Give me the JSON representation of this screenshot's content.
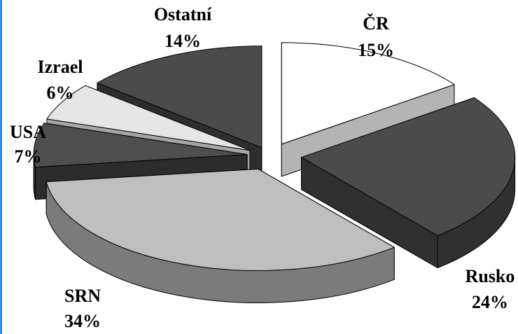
{
  "chart_data": {
    "type": "pie",
    "title": "",
    "exploded": true,
    "three_d": true,
    "slices": [
      {
        "label": "ČR",
        "pct_label": "15%",
        "value": 15,
        "top_color": "#ffffff",
        "side_color": "#b4b4b4"
      },
      {
        "label": "Rusko",
        "pct_label": "24%",
        "value": 24,
        "top_color": "#4b4b4b",
        "side_color": "#303030"
      },
      {
        "label": "SRN",
        "pct_label": "34%",
        "value": 34,
        "top_color": "#bfbfbf",
        "side_color": "#7b7b7b"
      },
      {
        "label": "USA",
        "pct_label": "7%",
        "value": 7,
        "top_color": "#4e4e4e",
        "side_color": "#2c2c2c"
      },
      {
        "label": "Izrael",
        "pct_label": "6%",
        "value": 6,
        "top_color": "#e6e6e6",
        "side_color": "#a6a6a6"
      },
      {
        "label": "Ostatní",
        "pct_label": "14%",
        "value": 14,
        "top_color": "#4b4b4b",
        "side_color": "#2e2e2e"
      }
    ]
  }
}
